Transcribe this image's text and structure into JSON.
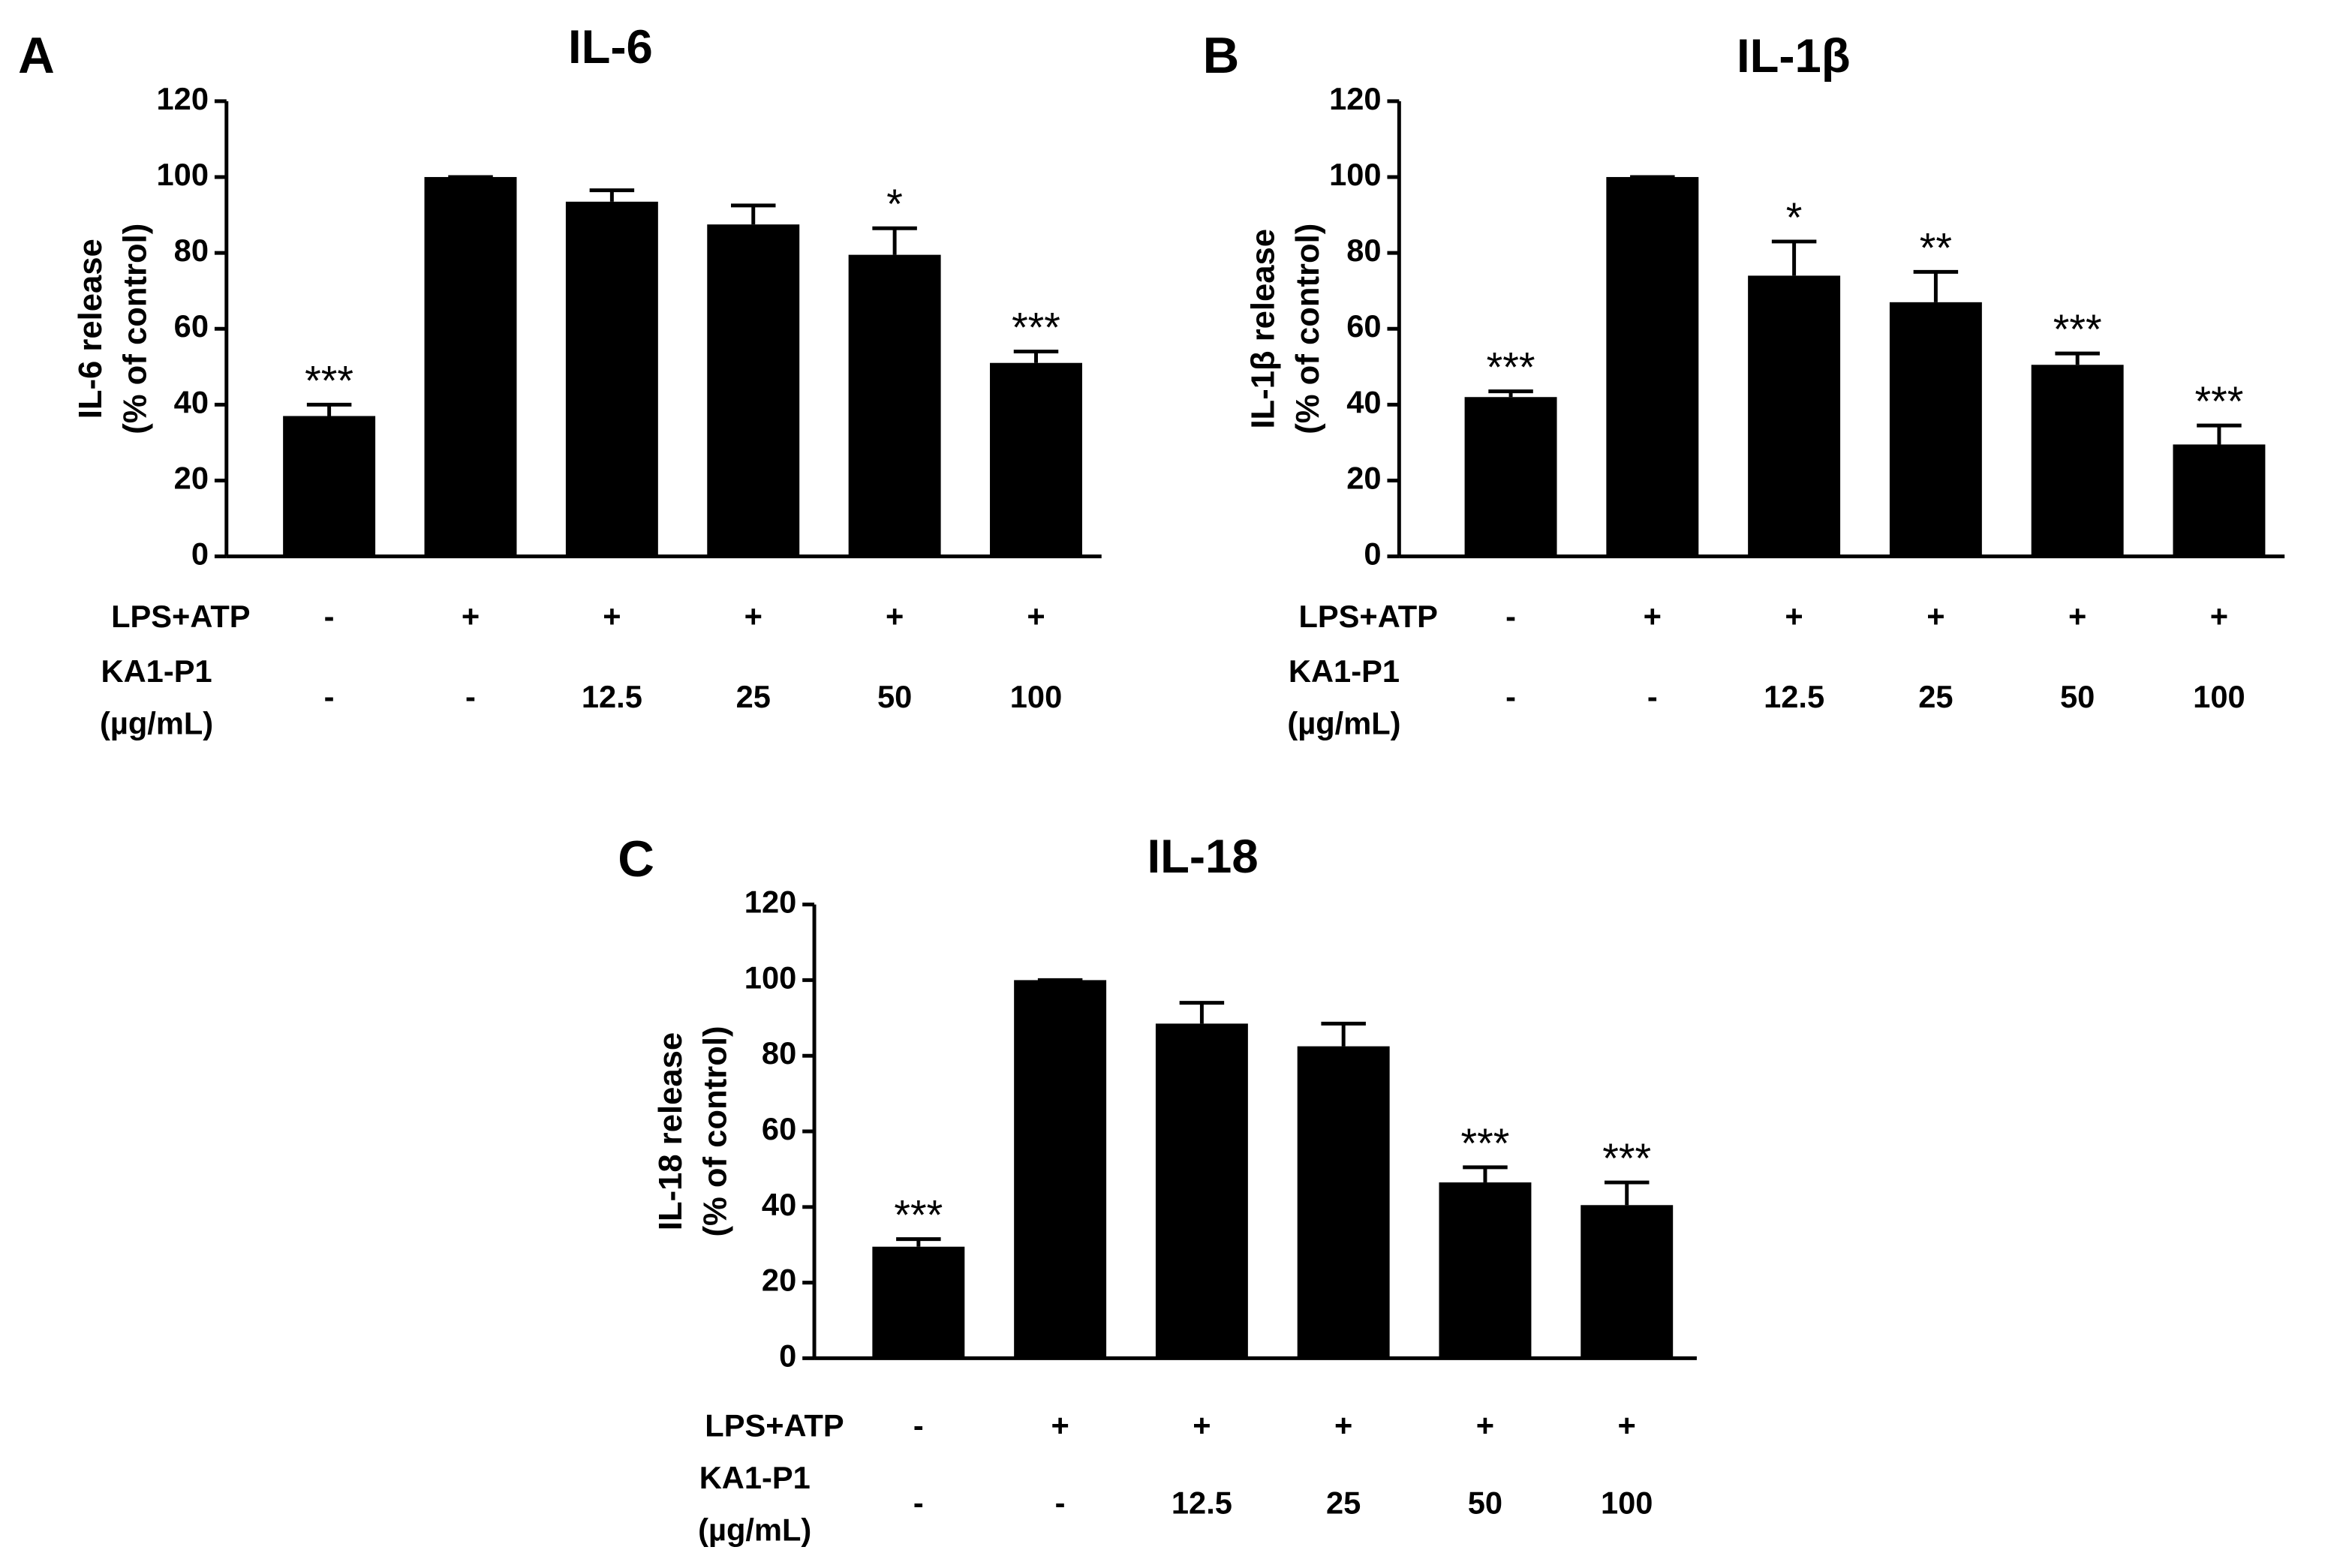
{
  "chart_data": [
    {
      "type": "bar",
      "panel": "A",
      "title": "IL-6",
      "ylabel": [
        "IL-6 release",
        "(% of control)"
      ],
      "row_labels": [
        [
          "LPS+ATP"
        ],
        [
          "KA1-P1",
          "(µg/mL)"
        ]
      ],
      "categories": [
        [
          "-",
          "-"
        ],
        [
          "+",
          "-"
        ],
        [
          "+",
          "12.5"
        ],
        [
          "+",
          "25"
        ],
        [
          "+",
          "50"
        ],
        [
          "+",
          "100"
        ]
      ],
      "values": [
        37,
        100,
        93.5,
        87.5,
        79.5,
        51
      ],
      "errors": [
        3,
        0,
        3,
        5,
        7,
        3
      ],
      "annotations": [
        "***",
        null,
        null,
        null,
        "*",
        "***"
      ],
      "color": "#000000",
      "ylim": [
        0,
        120
      ],
      "yticks": [
        0,
        20,
        40,
        60,
        80,
        100,
        120
      ]
    },
    {
      "type": "bar",
      "panel": "B",
      "title": "IL-1β",
      "ylabel": [
        "IL-1β release",
        "(% of control)"
      ],
      "row_labels": [
        [
          "LPS+ATP"
        ],
        [
          "KA1-P1",
          "(µg/mL)"
        ]
      ],
      "categories": [
        [
          "-",
          "-"
        ],
        [
          "+",
          "-"
        ],
        [
          "+",
          "12.5"
        ],
        [
          "+",
          "25"
        ],
        [
          "+",
          "50"
        ],
        [
          "+",
          "100"
        ]
      ],
      "values": [
        42,
        100,
        74,
        67,
        50.5,
        29.5
      ],
      "errors": [
        1.5,
        0,
        9,
        8,
        3,
        5
      ],
      "annotations": [
        "***",
        null,
        "*",
        "**",
        "***",
        "***"
      ],
      "color": "#000000",
      "ylim": [
        0,
        120
      ],
      "yticks": [
        0,
        20,
        40,
        60,
        80,
        100,
        120
      ]
    },
    {
      "type": "bar",
      "panel": "C",
      "title": "IL-18",
      "ylabel": [
        "IL-18 release",
        "(% of control)"
      ],
      "row_labels": [
        [
          "LPS+ATP"
        ],
        [
          "KA1-P1",
          "(µg/mL)"
        ]
      ],
      "categories": [
        [
          "-",
          "-"
        ],
        [
          "+",
          "-"
        ],
        [
          "+",
          "12.5"
        ],
        [
          "+",
          "25"
        ],
        [
          "+",
          "50"
        ],
        [
          "+",
          "100"
        ]
      ],
      "values": [
        29.5,
        100,
        88.5,
        82.5,
        46.5,
        40.5
      ],
      "errors": [
        2,
        0,
        5.5,
        6,
        4,
        6
      ],
      "annotations": [
        "***",
        null,
        null,
        null,
        "***",
        "***"
      ],
      "color": "#000000",
      "ylim": [
        0,
        120
      ],
      "yticks": [
        0,
        20,
        40,
        60,
        80,
        100,
        120
      ]
    }
  ]
}
